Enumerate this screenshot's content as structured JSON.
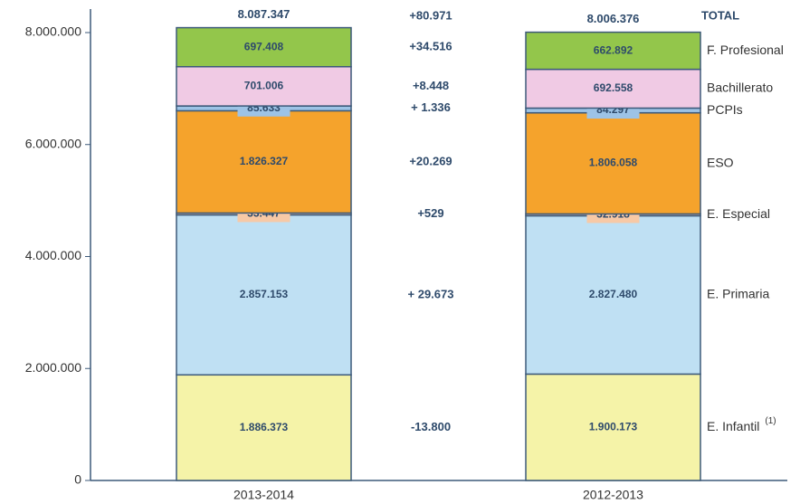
{
  "chart_data": {
    "type": "stacked_bar",
    "categories": [
      "2013-2014",
      "2012-2013"
    ],
    "ylim": [
      0,
      8420000
    ],
    "yticks": [
      {
        "value": 0,
        "label": "0"
      },
      {
        "value": 2000000,
        "label": "2.000.000"
      },
      {
        "value": 4000000,
        "label": "4.000.000"
      },
      {
        "value": 6000000,
        "label": "6.000.000"
      },
      {
        "value": 8000000,
        "label": "8.000.000"
      }
    ],
    "series": [
      {
        "name": "E. Infantil",
        "note": "(1)",
        "color": "#f5f3a8",
        "values": [
          1886373,
          1900173
        ],
        "value_labels": [
          "1.886.373",
          "1.900.173"
        ],
        "difference": -13800,
        "difference_label": "-13.800"
      },
      {
        "name": "E. Primaria",
        "color": "#bfe0f3",
        "values": [
          2857153,
          2827480
        ],
        "value_labels": [
          "2.857.153",
          "2.827.480"
        ],
        "difference": 29673,
        "difference_label": "+ 29.673"
      },
      {
        "name": "E. Especial",
        "color": "#f7c9a6",
        "values": [
          33447,
          32918
        ],
        "value_labels": [
          "33.447",
          "32.918"
        ],
        "difference": 529,
        "difference_label": "+529"
      },
      {
        "name": "ESO",
        "color": "#f5a32c",
        "values": [
          1826327,
          1806058
        ],
        "value_labels": [
          "1.826.327",
          "1.806.058"
        ],
        "difference": 20269,
        "difference_label": "+20.269"
      },
      {
        "name": "PCPIs",
        "color": "#9dc3e6",
        "values": [
          85633,
          84297
        ],
        "value_labels": [
          "85.633",
          "84.297"
        ],
        "difference": 1336,
        "difference_label": "+ 1.336"
      },
      {
        "name": "Bachillerato",
        "color": "#f0cae4",
        "values": [
          701006,
          692558
        ],
        "value_labels": [
          "701.006",
          "692.558"
        ],
        "difference": 8448,
        "difference_label": "+8.448"
      },
      {
        "name": "F. Profesional",
        "color": "#93c64b",
        "values": [
          697408,
          662892
        ],
        "value_labels": [
          "697.408",
          "662.892"
        ],
        "difference": 34516,
        "difference_label": "+34.516"
      }
    ],
    "totals": {
      "name": "TOTAL",
      "values": [
        8087347,
        8006376
      ],
      "value_labels": [
        "8.087.347",
        "8.006.376"
      ],
      "difference": 80971,
      "difference_label": "+80.971"
    }
  }
}
